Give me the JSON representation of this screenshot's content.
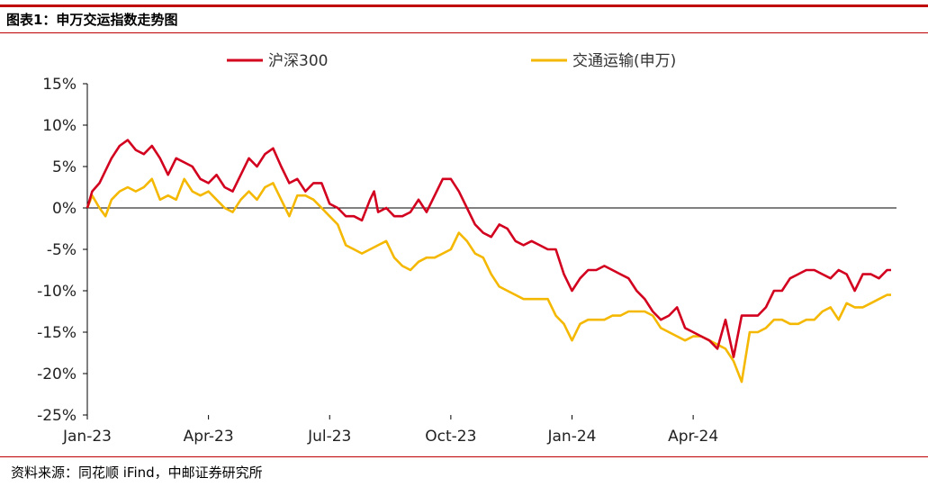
{
  "figure": {
    "title": "图表1：申万交运指数走势图",
    "source": "资料来源：同花顺 iFind，中邮证券研究所"
  },
  "chart_data": {
    "type": "line",
    "title": "",
    "xlabel": "",
    "ylabel": "",
    "ylim": [
      -25,
      15
    ],
    "yticks": [
      15,
      10,
      5,
      0,
      -5,
      -10,
      -15,
      -20,
      -25
    ],
    "ytick_labels": [
      "15%",
      "10%",
      "5%",
      "0%",
      "-5%",
      "-10%",
      "-15%",
      "-20%",
      "-25%"
    ],
    "xtick_labels": [
      "Jan-23",
      "Apr-23",
      "Jul-23",
      "Oct-23",
      "Jan-24",
      "Apr-24"
    ],
    "legend_position": "top-center",
    "grid": false,
    "zero_line": true,
    "colors": {
      "hs300": "#d2001e",
      "jiaotong": "#f5b800",
      "axis": "#000000"
    },
    "series": [
      {
        "name": "沪深300",
        "color": "#d2001e",
        "points": [
          [
            0,
            0
          ],
          [
            0.12,
            2
          ],
          [
            0.3,
            3
          ],
          [
            0.45,
            4.5
          ],
          [
            0.6,
            6
          ],
          [
            0.8,
            7.5
          ],
          [
            1.0,
            8.2
          ],
          [
            1.2,
            7
          ],
          [
            1.4,
            6.5
          ],
          [
            1.6,
            7.5
          ],
          [
            1.8,
            6
          ],
          [
            2.0,
            4
          ],
          [
            2.2,
            6
          ],
          [
            2.4,
            5.5
          ],
          [
            2.6,
            5
          ],
          [
            2.8,
            3.5
          ],
          [
            3.0,
            3
          ],
          [
            3.2,
            4
          ],
          [
            3.4,
            2.5
          ],
          [
            3.6,
            2
          ],
          [
            3.8,
            4
          ],
          [
            4.0,
            6
          ],
          [
            4.2,
            5
          ],
          [
            4.4,
            6.5
          ],
          [
            4.6,
            7.2
          ],
          [
            4.8,
            5
          ],
          [
            5.0,
            3
          ],
          [
            5.2,
            3.5
          ],
          [
            5.4,
            2
          ],
          [
            5.6,
            3
          ],
          [
            5.8,
            3
          ],
          [
            6.0,
            0.5
          ],
          [
            6.2,
            0
          ],
          [
            6.4,
            -1
          ],
          [
            6.6,
            -1
          ],
          [
            6.8,
            -1.5
          ],
          [
            7.0,
            1
          ],
          [
            7.1,
            2
          ],
          [
            7.2,
            -0.5
          ],
          [
            7.4,
            0
          ],
          [
            7.6,
            -1
          ],
          [
            7.8,
            -1
          ],
          [
            8.0,
            -0.5
          ],
          [
            8.2,
            1
          ],
          [
            8.4,
            -0.5
          ],
          [
            8.6,
            1.5
          ],
          [
            8.8,
            3.5
          ],
          [
            9.0,
            3.5
          ],
          [
            9.2,
            2
          ],
          [
            9.4,
            0
          ],
          [
            9.6,
            -2
          ],
          [
            9.8,
            -3
          ],
          [
            10.0,
            -3.5
          ],
          [
            10.2,
            -2
          ],
          [
            10.4,
            -2.5
          ],
          [
            10.6,
            -4
          ],
          [
            10.8,
            -4.5
          ],
          [
            11.0,
            -4
          ],
          [
            11.2,
            -4.5
          ],
          [
            11.4,
            -5
          ],
          [
            11.6,
            -5
          ],
          [
            11.8,
            -8
          ],
          [
            12.0,
            -10
          ],
          [
            12.2,
            -8.5
          ],
          [
            12.4,
            -7.5
          ],
          [
            12.6,
            -7.5
          ],
          [
            12.8,
            -7
          ],
          [
            13.0,
            -7.5
          ],
          [
            13.2,
            -8
          ],
          [
            13.4,
            -8.5
          ],
          [
            13.6,
            -10
          ],
          [
            13.8,
            -11
          ],
          [
            14.0,
            -12.5
          ],
          [
            14.2,
            -13.5
          ],
          [
            14.4,
            -13
          ],
          [
            14.6,
            -12
          ],
          [
            14.8,
            -14.5
          ],
          [
            15.0,
            -15
          ],
          [
            15.2,
            -15.5
          ],
          [
            15.4,
            -16
          ],
          [
            15.6,
            -17
          ],
          [
            15.8,
            -13.5
          ],
          [
            16.0,
            -18
          ],
          [
            16.2,
            -13
          ],
          [
            16.4,
            -13
          ],
          [
            16.6,
            -13
          ],
          [
            16.8,
            -12
          ],
          [
            17.0,
            -10
          ],
          [
            17.2,
            -10
          ],
          [
            17.4,
            -8.5
          ],
          [
            17.6,
            -8
          ],
          [
            17.8,
            -7.5
          ],
          [
            18.0,
            -7.5
          ],
          [
            18.2,
            -8
          ],
          [
            18.4,
            -8.5
          ],
          [
            18.6,
            -7.5
          ],
          [
            18.8,
            -8
          ],
          [
            19.0,
            -10
          ],
          [
            19.2,
            -8
          ],
          [
            19.4,
            -8
          ],
          [
            19.6,
            -8.5
          ],
          [
            19.8,
            -7.5
          ],
          [
            19.9,
            -7.5
          ]
        ]
      },
      {
        "name": "交通运输(申万)",
        "color": "#f5b800",
        "points": [
          [
            0,
            0
          ],
          [
            0.12,
            1.5
          ],
          [
            0.3,
            0
          ],
          [
            0.45,
            -1
          ],
          [
            0.6,
            1
          ],
          [
            0.8,
            2
          ],
          [
            1.0,
            2.5
          ],
          [
            1.2,
            2
          ],
          [
            1.4,
            2.5
          ],
          [
            1.6,
            3.5
          ],
          [
            1.8,
            1
          ],
          [
            2.0,
            1.5
          ],
          [
            2.2,
            1
          ],
          [
            2.4,
            3.5
          ],
          [
            2.6,
            2
          ],
          [
            2.8,
            1.5
          ],
          [
            3.0,
            2
          ],
          [
            3.2,
            1
          ],
          [
            3.4,
            0
          ],
          [
            3.6,
            -0.5
          ],
          [
            3.8,
            1
          ],
          [
            4.0,
            2
          ],
          [
            4.2,
            1
          ],
          [
            4.4,
            2.5
          ],
          [
            4.6,
            3
          ],
          [
            4.8,
            1
          ],
          [
            5.0,
            -1
          ],
          [
            5.2,
            1.5
          ],
          [
            5.4,
            1.5
          ],
          [
            5.6,
            1
          ],
          [
            5.8,
            0
          ],
          [
            6.0,
            -1
          ],
          [
            6.2,
            -2
          ],
          [
            6.4,
            -4.5
          ],
          [
            6.6,
            -5
          ],
          [
            6.8,
            -5.5
          ],
          [
            7.0,
            -5
          ],
          [
            7.2,
            -4.5
          ],
          [
            7.4,
            -4
          ],
          [
            7.6,
            -6
          ],
          [
            7.8,
            -7
          ],
          [
            8.0,
            -7.5
          ],
          [
            8.2,
            -6.5
          ],
          [
            8.4,
            -6
          ],
          [
            8.6,
            -6
          ],
          [
            8.8,
            -5.5
          ],
          [
            9.0,
            -5
          ],
          [
            9.2,
            -3
          ],
          [
            9.4,
            -4
          ],
          [
            9.6,
            -5.5
          ],
          [
            9.8,
            -6
          ],
          [
            10.0,
            -8
          ],
          [
            10.2,
            -9.5
          ],
          [
            10.4,
            -10
          ],
          [
            10.6,
            -10.5
          ],
          [
            10.8,
            -11
          ],
          [
            11.0,
            -11
          ],
          [
            11.2,
            -11
          ],
          [
            11.4,
            -11
          ],
          [
            11.6,
            -13
          ],
          [
            11.8,
            -14
          ],
          [
            12.0,
            -16
          ],
          [
            12.2,
            -14
          ],
          [
            12.4,
            -13.5
          ],
          [
            12.6,
            -13.5
          ],
          [
            12.8,
            -13.5
          ],
          [
            13.0,
            -13
          ],
          [
            13.2,
            -13
          ],
          [
            13.4,
            -12.5
          ],
          [
            13.6,
            -12.5
          ],
          [
            13.8,
            -12.5
          ],
          [
            14.0,
            -13
          ],
          [
            14.2,
            -14.5
          ],
          [
            14.4,
            -15
          ],
          [
            14.6,
            -15.5
          ],
          [
            14.8,
            -16
          ],
          [
            15.0,
            -15.5
          ],
          [
            15.2,
            -15.5
          ],
          [
            15.4,
            -16
          ],
          [
            15.6,
            -16.5
          ],
          [
            15.8,
            -17
          ],
          [
            16.0,
            -18.5
          ],
          [
            16.2,
            -21
          ],
          [
            16.4,
            -15
          ],
          [
            16.6,
            -15
          ],
          [
            16.8,
            -14.5
          ],
          [
            17.0,
            -13.5
          ],
          [
            17.2,
            -13.5
          ],
          [
            17.4,
            -14
          ],
          [
            17.6,
            -14
          ],
          [
            17.8,
            -13.5
          ],
          [
            18.0,
            -13.5
          ],
          [
            18.2,
            -12.5
          ],
          [
            18.4,
            -12
          ],
          [
            18.6,
            -13.5
          ],
          [
            18.8,
            -11.5
          ],
          [
            19.0,
            -12
          ],
          [
            19.2,
            -12
          ],
          [
            19.4,
            -11.5
          ],
          [
            19.6,
            -11
          ],
          [
            19.8,
            -10.5
          ],
          [
            19.9,
            -10.5
          ]
        ]
      }
    ]
  }
}
